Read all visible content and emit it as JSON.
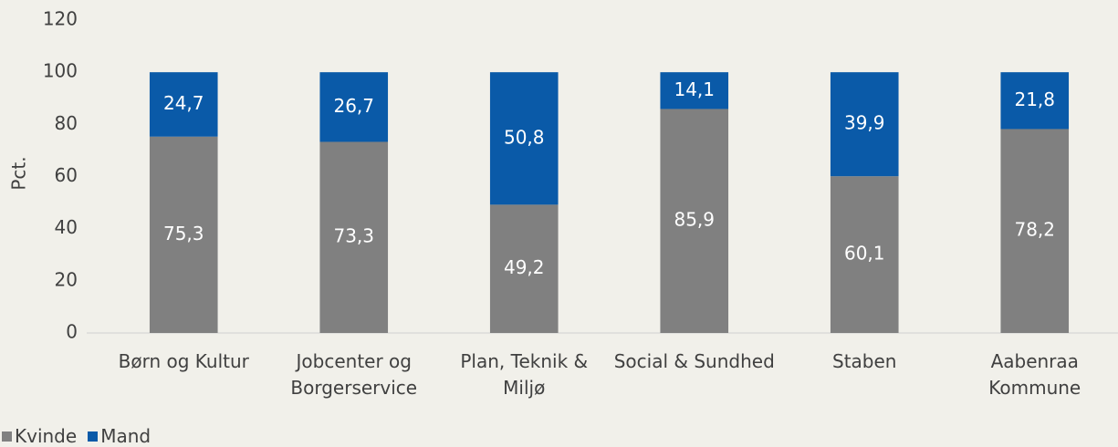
{
  "chart_data": {
    "type": "stacked_bar",
    "y_label": "Pct.",
    "categories": [
      "Børn og Kultur",
      "Jobcenter og Borgerservice",
      "Plan, Teknik & Miljø",
      "Social & Sundhed",
      "Staben",
      "Aabenraa Kommune"
    ],
    "series": [
      {
        "name": "Kvinde",
        "color": "#808080",
        "values": [
          75.3,
          73.3,
          49.2,
          85.9,
          60.1,
          78.2
        ],
        "value_labels": [
          "75,3",
          "73,3",
          "49,2",
          "85,9",
          "60,1",
          "78,2"
        ]
      },
      {
        "name": "Mand",
        "color": "#0a5aa8",
        "values": [
          24.7,
          26.7,
          50.8,
          14.1,
          39.9,
          21.8
        ],
        "value_labels": [
          "24,7",
          "26,7",
          "50,8",
          "14,1",
          "39,9",
          "21,8"
        ]
      }
    ],
    "ylim": [
      0,
      120
    ],
    "yticks": [
      0,
      20,
      40,
      60,
      80,
      100,
      120
    ],
    "grid": false,
    "legend": "bottom-left"
  }
}
